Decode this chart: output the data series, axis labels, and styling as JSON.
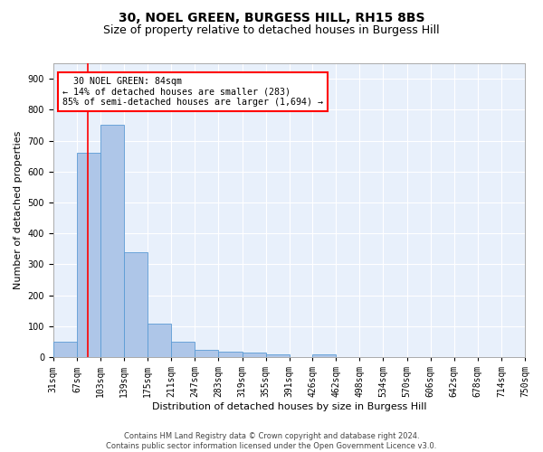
{
  "title": "30, NOEL GREEN, BURGESS HILL, RH15 8BS",
  "subtitle": "Size of property relative to detached houses in Burgess Hill",
  "xlabel": "Distribution of detached houses by size in Burgess Hill",
  "ylabel": "Number of detached properties",
  "footer_line1": "Contains HM Land Registry data © Crown copyright and database right 2024.",
  "footer_line2": "Contains public sector information licensed under the Open Government Licence v3.0.",
  "bin_labels": [
    "31sqm",
    "67sqm",
    "103sqm",
    "139sqm",
    "175sqm",
    "211sqm",
    "247sqm",
    "283sqm",
    "319sqm",
    "355sqm",
    "391sqm",
    "426sqm",
    "462sqm",
    "498sqm",
    "534sqm",
    "570sqm",
    "606sqm",
    "642sqm",
    "678sqm",
    "714sqm",
    "750sqm"
  ],
  "bar_values": [
    50,
    660,
    750,
    340,
    110,
    50,
    25,
    17,
    14,
    9,
    0,
    9,
    0,
    0,
    0,
    0,
    0,
    0,
    0,
    0
  ],
  "bar_color": "#aec6e8",
  "bar_edge_color": "#5b9bd5",
  "red_line_x": 84,
  "bin_edges": [
    31,
    67,
    103,
    139,
    175,
    211,
    247,
    283,
    319,
    355,
    391,
    426,
    462,
    498,
    534,
    570,
    606,
    642,
    678,
    714,
    750
  ],
  "ylim": [
    0,
    950
  ],
  "yticks": [
    0,
    100,
    200,
    300,
    400,
    500,
    600,
    700,
    800,
    900
  ],
  "annotation_text": "  30 NOEL GREEN: 84sqm\n← 14% of detached houses are smaller (283)\n85% of semi-detached houses are larger (1,694) →",
  "bg_color": "#e8f0fb",
  "grid_color": "#ffffff",
  "title_fontsize": 10,
  "subtitle_fontsize": 9,
  "label_fontsize": 8,
  "tick_fontsize": 7,
  "footer_fontsize": 6
}
